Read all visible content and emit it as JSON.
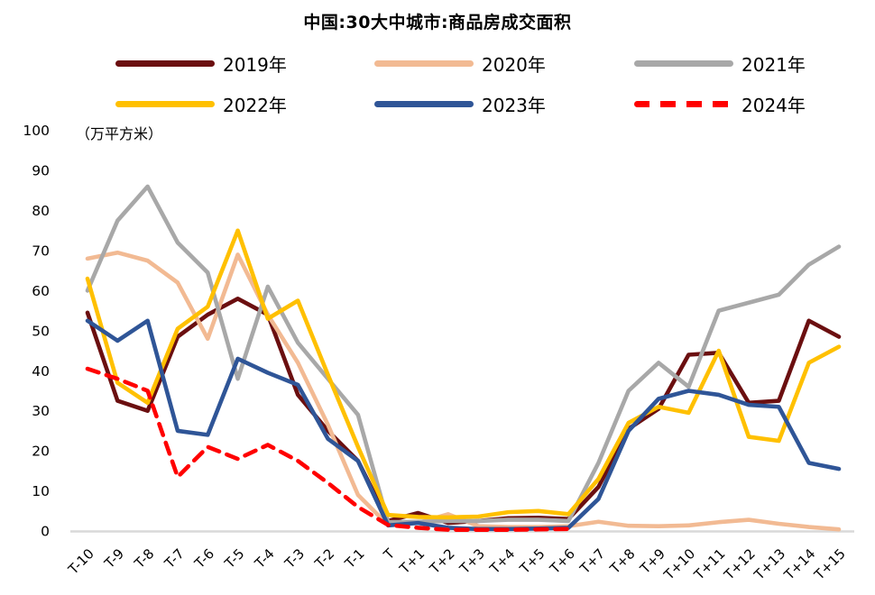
{
  "chart_data": {
    "type": "line",
    "title": "中国:30大中城市:商品房成交面积",
    "unit_label": "（万平方米）",
    "legend_position": "top",
    "grid": "off",
    "baseline_color": "#d9d9d9",
    "text_color": "#000000",
    "ylim": [
      0,
      100
    ],
    "y_ticks": [
      0,
      10,
      20,
      30,
      40,
      50,
      60,
      70,
      80,
      90,
      100
    ],
    "categories": [
      "T-10",
      "T-9",
      "T-8",
      "T-7",
      "T-6",
      "T-5",
      "T-4",
      "T-3",
      "T-2",
      "T-1",
      "T",
      "T+1",
      "T+2",
      "T+3",
      "T+4",
      "T+5",
      "T+6",
      "T+7",
      "T+8",
      "T+9",
      "T+10",
      "T+11",
      "T+12",
      "T+13",
      "T+14",
      "T+15"
    ],
    "series": [
      {
        "name": "2019年",
        "color": "#6B0F10",
        "dash": false,
        "values": [
          54.5,
          32.5,
          30,
          48.5,
          54,
          58,
          54,
          34,
          25,
          17.5,
          2.5,
          4.5,
          2,
          2.5,
          3.2,
          3.3,
          3,
          11,
          25.5,
          30.5,
          44,
          44.5,
          32,
          32.5,
          52.5,
          48.5
        ]
      },
      {
        "name": "2020年",
        "color": "#F2BA93",
        "dash": false,
        "values": [
          68,
          69.5,
          67.5,
          62,
          48,
          69,
          54,
          42,
          26.5,
          9,
          1.5,
          2,
          4.2,
          1.2,
          1,
          1,
          1.2,
          2.3,
          1.3,
          1.2,
          1.4,
          2.2,
          2.8,
          1.8,
          1,
          0.4
        ]
      },
      {
        "name": "2021年",
        "color": "#A8A8A8",
        "dash": false,
        "values": [
          60,
          77.5,
          86,
          72,
          64.5,
          38,
          61,
          47,
          38,
          29,
          2.2,
          2.3,
          2.5,
          2.5,
          2.8,
          2.8,
          2.5,
          17,
          35,
          42,
          36,
          55,
          57,
          59,
          66.5,
          71
        ]
      },
      {
        "name": "2022年",
        "color": "#FFC000",
        "dash": false,
        "values": [
          63,
          37,
          32,
          50.5,
          56,
          75,
          53,
          57.5,
          39,
          21,
          4,
          3.5,
          3.4,
          3.6,
          4.7,
          5,
          4.2,
          13,
          27,
          31,
          29.5,
          45,
          23.5,
          22.5,
          42,
          46
        ]
      },
      {
        "name": "2023年",
        "color": "#2F5597",
        "dash": false,
        "values": [
          52.5,
          47.5,
          52.5,
          25,
          24,
          43,
          39.5,
          36.5,
          23,
          17.5,
          1.4,
          2,
          0.8,
          0.5,
          0.5,
          0.6,
          0.8,
          8,
          25,
          33,
          35,
          34,
          31.5,
          31,
          17,
          15.5
        ]
      },
      {
        "name": "2024年",
        "color": "#FF0000",
        "dash": true,
        "values": [
          40.5,
          38,
          35,
          13.5,
          21,
          18,
          21.5,
          17.5,
          12,
          6,
          1.5,
          0.8,
          0.3,
          0.3,
          0.3,
          0.4,
          0.5
        ]
      }
    ]
  }
}
